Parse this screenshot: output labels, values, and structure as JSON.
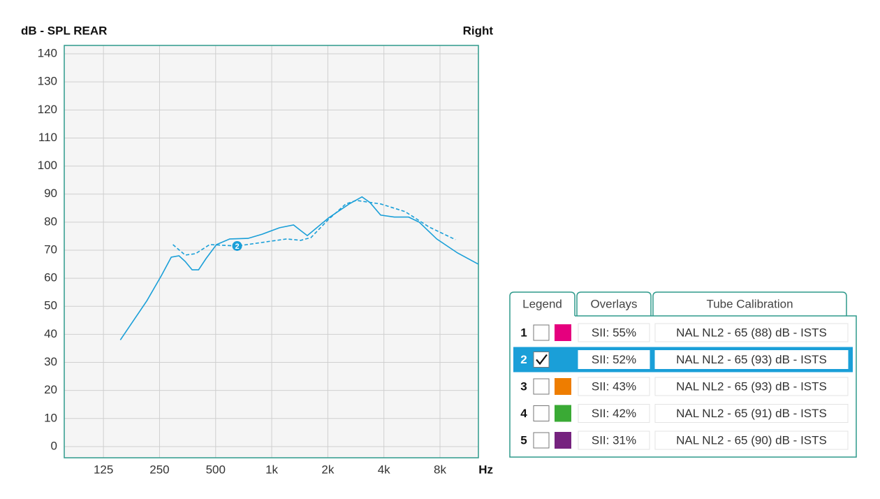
{
  "chart_data": {
    "type": "line",
    "title": "dB - SPL REAR",
    "subtitle": "Right",
    "x_label": "Hz",
    "x_scale": "log",
    "grid": true,
    "xlim": [
      77,
      12860
    ],
    "ylim": [
      -4,
      143
    ],
    "xticks": [
      {
        "value": 125,
        "label": "125"
      },
      {
        "value": 250,
        "label": "250"
      },
      {
        "value": 500,
        "label": "500"
      },
      {
        "value": 1000,
        "label": "1k"
      },
      {
        "value": 2000,
        "label": "2k"
      },
      {
        "value": 4000,
        "label": "4k"
      },
      {
        "value": 8000,
        "label": "8k"
      }
    ],
    "yticks": [
      0,
      10,
      20,
      30,
      40,
      50,
      60,
      70,
      80,
      90,
      100,
      110,
      120,
      130,
      140
    ],
    "series": [
      {
        "color": "#1a9fd8",
        "style": "solid",
        "x": [
          154,
          214,
          256,
          289,
          318,
          343,
          374,
          405,
          444,
          505,
          595,
          746,
          889,
          1101,
          1309,
          1430,
          1552,
          2020,
          2605,
          3050,
          3370,
          3840,
          4550,
          5430,
          6190,
          7680,
          9940,
          12860
        ],
        "values": [
          38,
          52,
          61,
          67.5,
          68,
          66,
          63,
          63,
          67,
          72,
          74,
          74.2,
          75.7,
          78,
          79,
          77,
          75.2,
          81.5,
          86.5,
          89,
          87,
          82.5,
          81.8,
          81.8,
          80,
          74,
          69,
          65
        ]
      },
      {
        "color": "#1a9fd8",
        "style": "dashed",
        "label": "2",
        "x": [
          295,
          343,
          390,
          464,
          652,
          1000,
          1203,
          1430,
          1625,
          2020,
          2500,
          2850,
          3840,
          5200,
          7000,
          9690
        ],
        "values": [
          72,
          68.25,
          68.75,
          72,
          71.5,
          73.25,
          74,
          73.5,
          74.5,
          81,
          86.5,
          87.75,
          86.5,
          83.75,
          78.25,
          73.75
        ]
      }
    ]
  },
  "legend_panel": {
    "tabs": [
      "Legend",
      "Overlays",
      "Tube Calibration"
    ],
    "rows": [
      {
        "number": "1",
        "checked": false,
        "selected": false,
        "color": "#e5007e",
        "sii": "SII: 55%",
        "description": "NAL NL2 - 65 (88) dB - ISTS"
      },
      {
        "number": "2",
        "checked": true,
        "selected": true,
        "color": "#1a9fd8",
        "sii": "SII: 52%",
        "description": "NAL NL2 - 65 (93) dB - ISTS"
      },
      {
        "number": "3",
        "checked": false,
        "selected": false,
        "color": "#ee7d00",
        "sii": "SII: 43%",
        "description": "NAL NL2 - 65 (93) dB - ISTS"
      },
      {
        "number": "4",
        "checked": false,
        "selected": false,
        "color": "#3aaa35",
        "sii": "SII: 42%",
        "description": "NAL NL2 - 65 (91) dB - ISTS"
      },
      {
        "number": "5",
        "checked": false,
        "selected": false,
        "color": "#76237f",
        "sii": "SII: 31%",
        "description": "NAL NL2 - 65 (90) dB - ISTS"
      }
    ]
  }
}
